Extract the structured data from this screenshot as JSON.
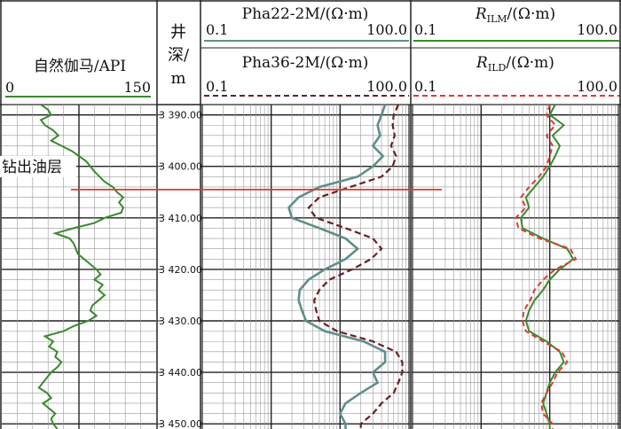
{
  "header": {
    "gr_label": "自然伽马/API",
    "gr_min": "0",
    "gr_max": "150",
    "depth_label_1": "井",
    "depth_label_2": "深/",
    "depth_label_3": "m",
    "pha22_label": "Pha22-2M/(Ω·m)",
    "pha36_label": "Pha36-2M/(Ω·m)",
    "r_min": "0.1",
    "r_max": "100.0",
    "rilm_symbol": "R",
    "rilm_sub": "ILM",
    "rild_symbol": "R",
    "rild_sub": "ILD",
    "r_unit": "/(Ω·m)"
  },
  "annotation": {
    "text": "钻出油层",
    "depth": 3404.5
  },
  "depth_ticks": [
    "3 390.00",
    "3 400.00",
    "3 410.00",
    "3 420.00",
    "3 430.00",
    "3 440.00",
    "3 450.00"
  ],
  "colors": {
    "gamma": "#3a8a2e",
    "pha22": "#5f8f89",
    "pha36": "#6b2020",
    "rilm": "#3a8a2e",
    "rild": "#e03a2e",
    "marker": "#e03a2e"
  },
  "chart_data": {
    "type": "line",
    "depth_range": [
      3388,
      3451
    ],
    "gamma_api": {
      "range": [
        0,
        150
      ],
      "depth": [
        3388,
        3389,
        3390,
        3391,
        3392,
        3393,
        3394,
        3395,
        3396,
        3397,
        3398,
        3399,
        3400,
        3401,
        3402,
        3403,
        3404,
        3405,
        3406,
        3407,
        3408,
        3409,
        3410,
        3411,
        3412,
        3413,
        3414,
        3415,
        3416,
        3417,
        3418,
        3419,
        3420,
        3421,
        3422,
        3423,
        3424,
        3425,
        3426,
        3427,
        3428,
        3429,
        3430,
        3431,
        3432,
        3433,
        3434,
        3435,
        3436,
        3437,
        3438,
        3439,
        3440,
        3441,
        3442,
        3443,
        3444,
        3445,
        3446,
        3447,
        3448,
        3449,
        3450,
        3451
      ],
      "values": [
        38,
        45,
        48,
        38,
        42,
        50,
        55,
        48,
        58,
        68,
        75,
        82,
        86,
        90,
        95,
        100,
        108,
        112,
        118,
        114,
        118,
        116,
        100,
        90,
        70,
        52,
        66,
        70,
        72,
        74,
        80,
        86,
        92,
        96,
        90,
        98,
        94,
        100,
        94,
        88,
        86,
        92,
        84,
        70,
        60,
        42,
        50,
        46,
        54,
        52,
        58,
        54,
        48,
        44,
        40,
        36,
        44,
        48,
        40,
        46,
        52,
        48,
        50,
        54
      ]
    },
    "series": [
      {
        "name": "Pha22-2M",
        "depth": [
          3388,
          3390,
          3392,
          3394,
          3396,
          3398,
          3400,
          3402,
          3404,
          3406,
          3408,
          3410,
          3412,
          3414,
          3416,
          3418,
          3420,
          3422,
          3424,
          3426,
          3428,
          3430,
          3432,
          3434,
          3436,
          3438,
          3440,
          3442,
          3444,
          3446,
          3448,
          3450,
          3451
        ],
        "values": [
          45,
          40,
          35,
          38,
          30,
          42,
          30,
          18,
          5,
          2.5,
          1.8,
          2.0,
          5,
          12,
          18,
          12,
          6,
          3.5,
          2.6,
          2.5,
          2.8,
          3.2,
          6,
          22,
          45,
          45,
          30,
          35,
          20,
          12,
          10,
          12,
          12
        ]
      },
      {
        "name": "Pha36-2M",
        "depth": [
          3388,
          3390,
          3392,
          3394,
          3396,
          3398,
          3400,
          3402,
          3404,
          3406,
          3408,
          3410,
          3412,
          3414,
          3416,
          3418,
          3420,
          3422,
          3424,
          3426,
          3428,
          3430,
          3432,
          3434,
          3436,
          3438,
          3440,
          3442,
          3444,
          3446,
          3448,
          3450,
          3451
        ],
        "values": [
          70,
          60,
          58,
          62,
          55,
          65,
          58,
          40,
          14,
          5,
          3.5,
          4.5,
          12,
          30,
          40,
          28,
          15,
          7,
          5,
          4.2,
          4.5,
          5,
          9,
          30,
          65,
          80,
          80,
          70,
          60,
          40,
          30,
          20,
          20
        ]
      },
      {
        "name": "RILM",
        "depth": [
          3388,
          3390,
          3392,
          3394,
          3396,
          3398,
          3400,
          3402,
          3404,
          3406,
          3408,
          3410,
          3412,
          3414,
          3416,
          3418,
          3420,
          3422,
          3424,
          3426,
          3428,
          3430,
          3432,
          3434,
          3436,
          3438,
          3440,
          3442,
          3444,
          3446,
          3448,
          3450,
          3451
        ],
        "values": [
          12,
          10,
          16,
          11,
          14,
          12,
          10,
          8,
          6,
          4.5,
          5,
          3.8,
          4,
          8,
          18,
          22,
          14,
          10,
          8,
          6,
          5,
          4.5,
          5,
          9,
          14,
          16,
          12,
          10,
          9,
          8,
          9,
          10,
          10
        ]
      },
      {
        "name": "RILD",
        "depth": [
          3388,
          3390,
          3392,
          3394,
          3396,
          3398,
          3400,
          3402,
          3404,
          3406,
          3408,
          3410,
          3412,
          3414,
          3416,
          3418,
          3420,
          3422,
          3424,
          3426,
          3428,
          3430,
          3432,
          3434,
          3436,
          3438,
          3440,
          3442,
          3444,
          3446,
          3448,
          3450,
          3451
        ],
        "values": [
          10,
          9,
          12,
          9,
          11,
          10,
          9,
          7,
          5,
          3.8,
          4.5,
          3.2,
          3.5,
          7,
          20,
          24,
          12,
          8,
          6,
          5.2,
          4.2,
          4,
          4.5,
          8,
          15,
          18,
          13,
          11,
          9,
          7.5,
          8,
          11,
          11
        ]
      }
    ]
  }
}
